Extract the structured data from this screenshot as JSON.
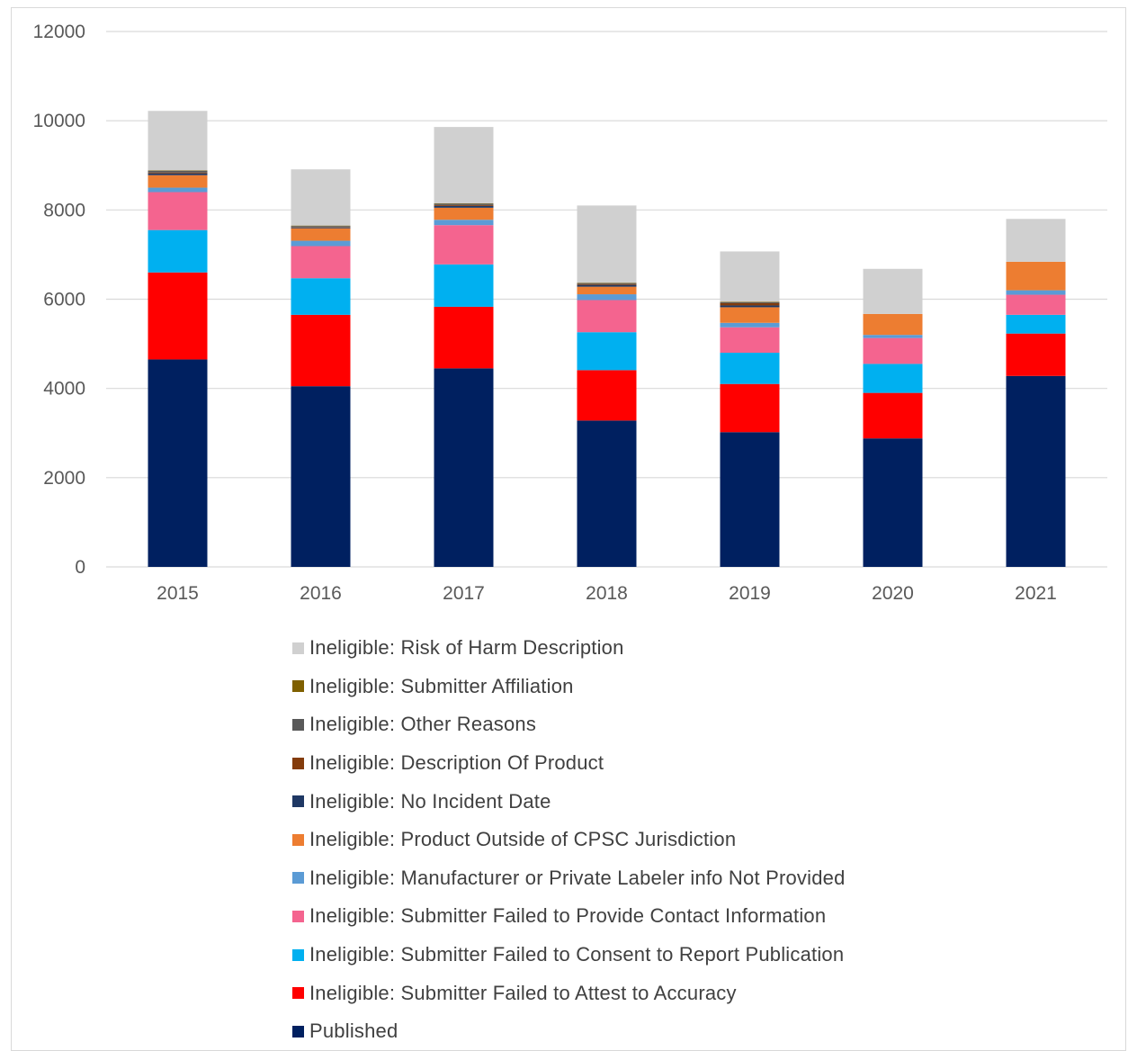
{
  "chart_data": {
    "type": "bar",
    "stacked": true,
    "title": "",
    "xlabel": "",
    "ylabel": "",
    "categories": [
      "2015",
      "2016",
      "2017",
      "2018",
      "2019",
      "2020",
      "2021"
    ],
    "ylim": [
      0,
      12000
    ],
    "yticks": [
      0,
      2000,
      4000,
      6000,
      8000,
      10000,
      12000
    ],
    "grid": true,
    "legend_position": "bottom",
    "series": [
      {
        "name": "Published",
        "color": "#002060",
        "values": [
          4650,
          4050,
          4450,
          3280,
          3020,
          2880,
          4280
        ]
      },
      {
        "name": "Ineligible: Submitter Failed to Attest to Accuracy",
        "color": "#ff0000",
        "values": [
          1950,
          1600,
          1380,
          1130,
          1080,
          1020,
          950
        ]
      },
      {
        "name": "Ineligible: Submitter Failed to Consent to Report Publication",
        "color": "#00b0f0",
        "values": [
          950,
          820,
          950,
          850,
          700,
          650,
          420
        ]
      },
      {
        "name": "Ineligible: Submitter Failed to Provide Contact Information",
        "color": "#f4648f",
        "values": [
          850,
          720,
          880,
          720,
          570,
          580,
          450
        ]
      },
      {
        "name": "Ineligible: Manufacturer or Private Labeler info Not Provided",
        "color": "#5b9bd5",
        "values": [
          100,
          120,
          120,
          130,
          100,
          70,
          100
        ]
      },
      {
        "name": "Ineligible: Product Outside of CPSC Jurisdiction",
        "color": "#ed7d31",
        "values": [
          280,
          280,
          270,
          170,
          350,
          470,
          640
        ]
      },
      {
        "name": "Ineligible: No Incident Date",
        "color": "#1f3864",
        "values": [
          40,
          20,
          40,
          40,
          40,
          0,
          0
        ]
      },
      {
        "name": "Ineligible: Description Of Product",
        "color": "#843c0c",
        "values": [
          20,
          10,
          20,
          20,
          50,
          0,
          0
        ]
      },
      {
        "name": "Ineligible: Other Reasons",
        "color": "#595959",
        "values": [
          40,
          20,
          30,
          20,
          20,
          0,
          0
        ]
      },
      {
        "name": "Ineligible: Submitter Affiliation",
        "color": "#7f6000",
        "values": [
          10,
          10,
          10,
          10,
          10,
          0,
          0
        ]
      },
      {
        "name": "Ineligible: Risk of Harm Description",
        "color": "#d0d0d0",
        "values": [
          1330,
          1260,
          1710,
          1730,
          1130,
          1010,
          960
        ]
      }
    ]
  }
}
